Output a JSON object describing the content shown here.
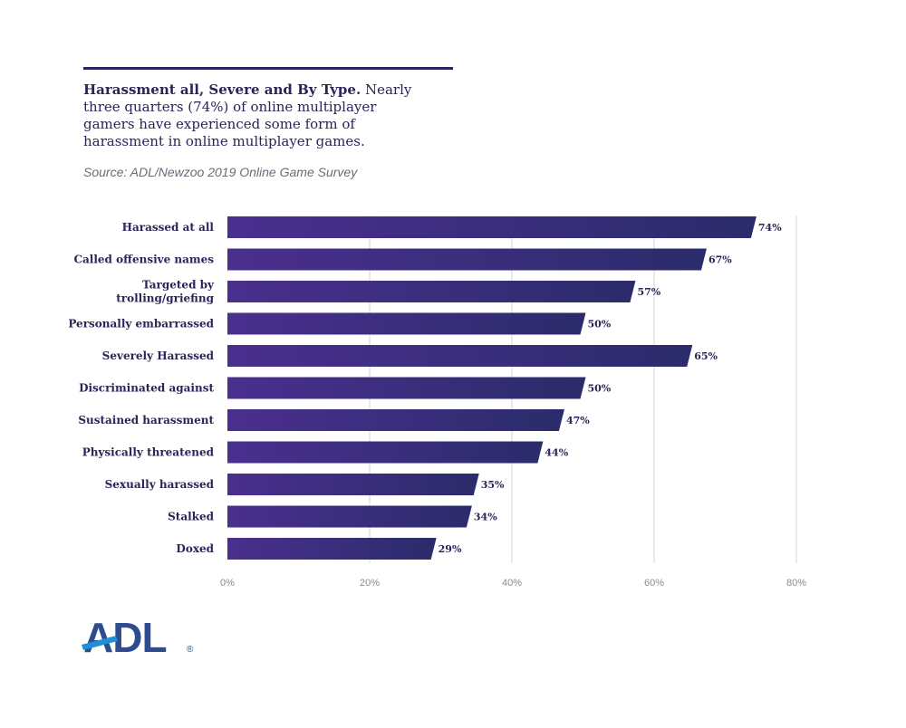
{
  "header": {
    "title_bold": "Harassment all, Severe and By Type.",
    "title_rest": " Nearly three quarters (74%) of online multiplayer gamers have experienced some form of harassment in online multiplayer games.",
    "source": "Source: ADL/Newzoo 2019 Online Game Survey"
  },
  "logo": {
    "text": "ADL",
    "mark": "®"
  },
  "colors": {
    "bar_start": "#4a2f8f",
    "bar_end": "#2b2c6b",
    "text": "#2a2459",
    "grid": "#d4d4d8",
    "tick": "#8a8a96"
  },
  "chart_data": {
    "type": "bar",
    "orientation": "horizontal",
    "categories": [
      [
        "Harassed at all"
      ],
      [
        "Called offensive names"
      ],
      [
        "Targeted by",
        "trolling/griefing"
      ],
      [
        "Personally embarrassed"
      ],
      [
        "Severely Harassed"
      ],
      [
        "Discriminated against"
      ],
      [
        "Sustained harassment"
      ],
      [
        "Physically threatened"
      ],
      [
        "Sexually harassed"
      ],
      [
        "Stalked"
      ],
      [
        "Doxed"
      ]
    ],
    "values": [
      74,
      67,
      57,
      50,
      65,
      50,
      47,
      44,
      35,
      34,
      29
    ],
    "value_labels": [
      "74%",
      "67%",
      "57%",
      "50%",
      "65%",
      "50%",
      "47%",
      "44%",
      "35%",
      "34%",
      "29%"
    ],
    "xlim": [
      0,
      80
    ],
    "xticks": [
      0,
      20,
      40,
      60,
      80
    ],
    "xtick_labels": [
      "0%",
      "20%",
      "40%",
      "60%",
      "80%"
    ],
    "grid": true
  }
}
